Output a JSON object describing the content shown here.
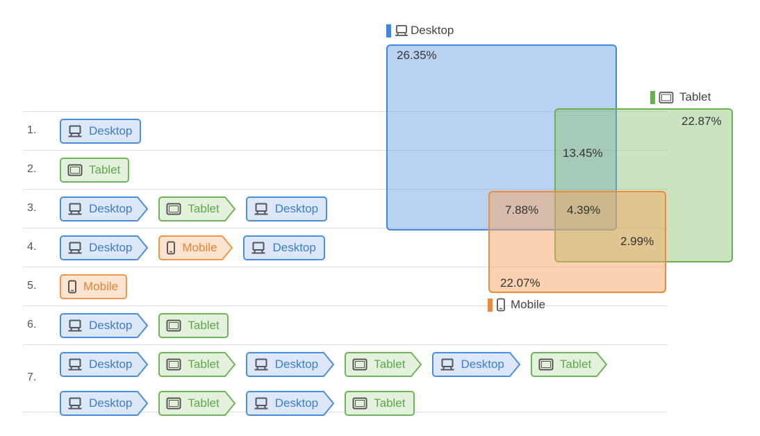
{
  "colors": {
    "desktop": "#4b8de0",
    "tablet": "#6fb35a",
    "mobile": "#f39446"
  },
  "icons": {
    "desktop": "desktop-icon",
    "tablet": "tablet-icon",
    "mobile": "mobile-phone-icon"
  },
  "paths": [
    {
      "num": "1.",
      "steps": [
        {
          "label": "Desktop",
          "type": "desktop"
        }
      ]
    },
    {
      "num": "2.",
      "steps": [
        {
          "label": "Tablet",
          "type": "tablet"
        }
      ]
    },
    {
      "num": "3.",
      "steps": [
        {
          "label": "Desktop",
          "type": "desktop"
        },
        {
          "label": "Tablet",
          "type": "tablet"
        },
        {
          "label": "Desktop",
          "type": "desktop"
        }
      ]
    },
    {
      "num": "4.",
      "steps": [
        {
          "label": "Desktop",
          "type": "desktop"
        },
        {
          "label": "Mobile",
          "type": "mobile"
        },
        {
          "label": "Desktop",
          "type": "desktop"
        }
      ]
    },
    {
      "num": "5.",
      "steps": [
        {
          "label": "Mobile",
          "type": "mobile"
        }
      ]
    },
    {
      "num": "6.",
      "steps": [
        {
          "label": "Desktop",
          "type": "desktop"
        },
        {
          "label": "Tablet",
          "type": "tablet"
        }
      ]
    },
    {
      "num": "7.",
      "steps": [
        {
          "label": "Desktop",
          "type": "desktop"
        },
        {
          "label": "Tablet",
          "type": "tablet"
        },
        {
          "label": "Desktop",
          "type": "desktop"
        },
        {
          "label": "Tablet",
          "type": "tablet"
        },
        {
          "label": "Desktop",
          "type": "desktop"
        },
        {
          "label": "Tablet",
          "type": "tablet"
        },
        {
          "label": "Desktop",
          "type": "desktop"
        },
        {
          "label": "Tablet",
          "type": "tablet"
        },
        {
          "label": "Desktop",
          "type": "desktop"
        },
        {
          "label": "Tablet",
          "type": "tablet"
        }
      ]
    }
  ],
  "venn": {
    "desktop": {
      "label": "Desktop",
      "only": "26.35%"
    },
    "tablet": {
      "label": "Tablet",
      "only": "22.87%"
    },
    "mobile": {
      "label": "Mobile",
      "only": "22.07%"
    },
    "desktop_tablet": "13.45%",
    "desktop_mobile": "7.88%",
    "all_three": "4.39%",
    "tablet_mobile": "2.99%"
  }
}
